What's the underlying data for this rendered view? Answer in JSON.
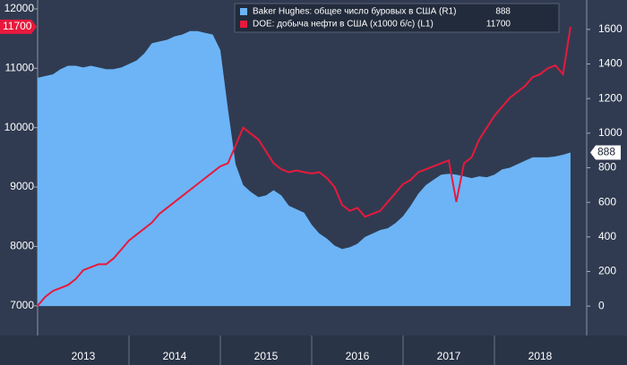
{
  "chart_data": {
    "type": "area_line",
    "x": [
      2013,
      2013.083,
      2013.167,
      2013.25,
      2013.333,
      2013.417,
      2013.5,
      2013.583,
      2013.667,
      2013.75,
      2013.833,
      2013.917,
      2014,
      2014.083,
      2014.167,
      2014.25,
      2014.333,
      2014.417,
      2014.5,
      2014.583,
      2014.667,
      2014.75,
      2014.833,
      2014.917,
      2015,
      2015.083,
      2015.167,
      2015.25,
      2015.333,
      2015.417,
      2015.5,
      2015.583,
      2015.667,
      2015.75,
      2015.833,
      2015.917,
      2016,
      2016.083,
      2016.167,
      2016.25,
      2016.333,
      2016.417,
      2016.5,
      2016.583,
      2016.667,
      2016.75,
      2016.833,
      2016.917,
      2017,
      2017.083,
      2017.167,
      2017.25,
      2017.333,
      2017.417,
      2017.5,
      2017.583,
      2017.667,
      2017.75,
      2017.833,
      2017.917,
      2018,
      2018.083,
      2018.167,
      2018.25,
      2018.333,
      2018.417,
      2018.5,
      2018.583,
      2018.667,
      2018.75,
      2018.833
    ],
    "series": [
      {
        "name": "Baker Hughes: общее число буровых в США (R1)",
        "color": "#6cb4f6",
        "axis": "y2",
        "kind": "area",
        "values": [
          1320,
          1330,
          1340,
          1370,
          1390,
          1390,
          1380,
          1390,
          1380,
          1370,
          1370,
          1380,
          1400,
          1420,
          1460,
          1520,
          1530,
          1540,
          1560,
          1570,
          1590,
          1590,
          1580,
          1570,
          1480,
          1140,
          820,
          700,
          660,
          630,
          640,
          670,
          640,
          580,
          560,
          540,
          470,
          420,
          390,
          350,
          330,
          340,
          360,
          400,
          420,
          440,
          450,
          480,
          520,
          580,
          650,
          700,
          730,
          760,
          765,
          760,
          750,
          740,
          750,
          745,
          760,
          790,
          800,
          820,
          840,
          860,
          860,
          860,
          865,
          875,
          888
        ]
      },
      {
        "name": "DOE: добыча нефти в США (x1000 б/с) (L1)",
        "color": "#e8193c",
        "axis": "y",
        "kind": "line",
        "values": [
          7000,
          7150,
          7250,
          7300,
          7350,
          7450,
          7600,
          7650,
          7700,
          7700,
          7800,
          7950,
          8100,
          8200,
          8300,
          8400,
          8550,
          8650,
          8750,
          8850,
          8950,
          9050,
          9150,
          9250,
          9350,
          9400,
          9700,
          10000,
          9900,
          9800,
          9600,
          9400,
          9300,
          9250,
          9280,
          9250,
          9230,
          9250,
          9150,
          9000,
          8700,
          8600,
          8650,
          8500,
          8550,
          8600,
          8750,
          8900,
          9050,
          9120,
          9250,
          9300,
          9350,
          9400,
          9450,
          8750,
          9400,
          9500,
          9800,
          10000,
          10200,
          10350,
          10500,
          10600,
          10700,
          10850,
          10900,
          11000,
          11050,
          10900,
          11700
        ]
      }
    ],
    "xlim": [
      2013,
      2019
    ],
    "xticks": [
      {
        "value": 2013.5,
        "label": "2013"
      },
      {
        "value": 2014.5,
        "label": "2014"
      },
      {
        "value": 2015.5,
        "label": "2015"
      },
      {
        "value": 2016.5,
        "label": "2016"
      },
      {
        "value": 2017.5,
        "label": "2017"
      },
      {
        "value": 2018.5,
        "label": "2018"
      }
    ],
    "ylim": [
      6500,
      12150
    ],
    "yticks": [
      7000,
      8000,
      9000,
      10000,
      11000,
      12000
    ],
    "y2lim": [
      -170,
      1770
    ],
    "y2ticks": [
      0,
      200,
      400,
      600,
      800,
      1000,
      1200,
      1400,
      1600
    ]
  }
}
